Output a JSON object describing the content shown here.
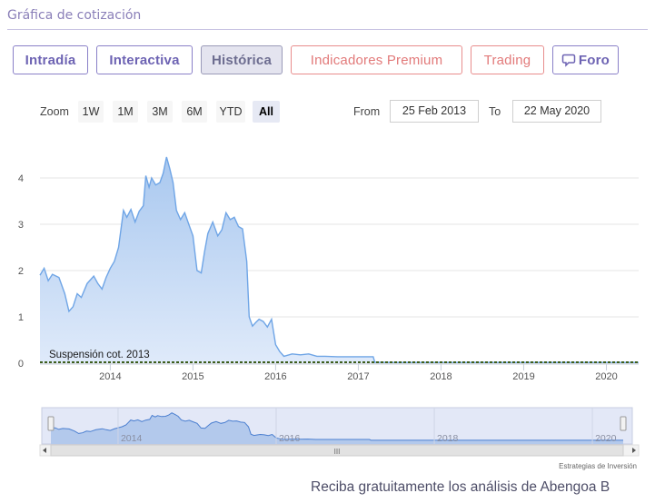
{
  "section": {
    "title": "Gráfica de cotización"
  },
  "tabs": [
    {
      "label": "Intradía",
      "style": "normal"
    },
    {
      "label": "Interactiva",
      "style": "normal"
    },
    {
      "label": "Histórica",
      "style": "active"
    },
    {
      "label": "Indicadores Premium",
      "style": "premium"
    },
    {
      "label": "Trading",
      "style": "premium"
    },
    {
      "label": "Foro",
      "style": "normal",
      "icon": "speech-bubble-icon"
    }
  ],
  "range": {
    "zoom_label": "Zoom",
    "buttons": [
      "1W",
      "1M",
      "3M",
      "6M",
      "YTD",
      "All"
    ],
    "selected": "All",
    "from_label": "From",
    "from_value": "25 Feb 2013",
    "to_label": "To",
    "to_value": "22 May 2020"
  },
  "chart_data": {
    "type": "area",
    "ylim": [
      0,
      5
    ],
    "y_ticks": [
      0,
      1,
      2,
      3,
      4
    ],
    "y_tick_labels": [
      "0",
      "1",
      "2",
      "3",
      "4"
    ],
    "x_range": [
      2013.15,
      2020.39
    ],
    "x_ticks": [
      2014,
      2015,
      2016,
      2017,
      2018,
      2019,
      2020
    ],
    "x_tick_labels": [
      "2014",
      "2015",
      "2016",
      "2017",
      "2018",
      "2019",
      "2020"
    ],
    "grid": true,
    "series": [
      {
        "values": [
          [
            2013.15,
            1.9
          ],
          [
            2013.2,
            2.05
          ],
          [
            2013.25,
            1.78
          ],
          [
            2013.3,
            1.92
          ],
          [
            2013.38,
            1.85
          ],
          [
            2013.45,
            1.5
          ],
          [
            2013.5,
            1.12
          ],
          [
            2013.55,
            1.22
          ],
          [
            2013.6,
            1.5
          ],
          [
            2013.65,
            1.42
          ],
          [
            2013.72,
            1.72
          ],
          [
            2013.8,
            1.88
          ],
          [
            2013.85,
            1.72
          ],
          [
            2013.9,
            1.6
          ],
          [
            2013.95,
            1.85
          ],
          [
            2014.0,
            2.05
          ],
          [
            2014.05,
            2.2
          ],
          [
            2014.1,
            2.5
          ],
          [
            2014.13,
            2.9
          ],
          [
            2014.16,
            3.3
          ],
          [
            2014.2,
            3.15
          ],
          [
            2014.25,
            3.32
          ],
          [
            2014.3,
            3.05
          ],
          [
            2014.35,
            3.28
          ],
          [
            2014.4,
            3.4
          ],
          [
            2014.43,
            4.05
          ],
          [
            2014.47,
            3.8
          ],
          [
            2014.5,
            4.0
          ],
          [
            2014.55,
            3.85
          ],
          [
            2014.6,
            3.9
          ],
          [
            2014.64,
            4.1
          ],
          [
            2014.68,
            4.45
          ],
          [
            2014.72,
            4.2
          ],
          [
            2014.76,
            3.9
          ],
          [
            2014.8,
            3.3
          ],
          [
            2014.85,
            3.1
          ],
          [
            2014.9,
            3.25
          ],
          [
            2014.95,
            3.0
          ],
          [
            2015.0,
            2.75
          ],
          [
            2015.05,
            2.0
          ],
          [
            2015.1,
            1.95
          ],
          [
            2015.14,
            2.4
          ],
          [
            2015.18,
            2.8
          ],
          [
            2015.24,
            3.05
          ],
          [
            2015.3,
            2.75
          ],
          [
            2015.35,
            2.88
          ],
          [
            2015.4,
            3.25
          ],
          [
            2015.45,
            3.1
          ],
          [
            2015.5,
            3.15
          ],
          [
            2015.55,
            2.95
          ],
          [
            2015.6,
            2.9
          ],
          [
            2015.65,
            2.2
          ],
          [
            2015.68,
            1.0
          ],
          [
            2015.72,
            0.8
          ],
          [
            2015.76,
            0.88
          ],
          [
            2015.8,
            0.95
          ],
          [
            2015.85,
            0.9
          ],
          [
            2015.9,
            0.78
          ],
          [
            2015.95,
            0.95
          ],
          [
            2016.0,
            0.4
          ],
          [
            2016.05,
            0.25
          ],
          [
            2016.1,
            0.15
          ],
          [
            2016.2,
            0.2
          ],
          [
            2016.3,
            0.18
          ],
          [
            2016.4,
            0.2
          ],
          [
            2016.5,
            0.15
          ],
          [
            2016.6,
            0.15
          ],
          [
            2016.75,
            0.14
          ],
          [
            2016.9,
            0.14
          ],
          [
            2017.05,
            0.14
          ],
          [
            2017.18,
            0.14
          ],
          [
            2017.2,
            0.02
          ],
          [
            2017.4,
            0.015
          ],
          [
            2017.7,
            0.015
          ],
          [
            2018.0,
            0.015
          ],
          [
            2018.5,
            0.015
          ],
          [
            2019.0,
            0.015
          ],
          [
            2019.5,
            0.015
          ],
          [
            2020.0,
            0.015
          ],
          [
            2020.39,
            0.015
          ]
        ],
        "color": "#6fa5e6",
        "fill_top": "#a9c8ef",
        "fill_bottom": "#dfeafa"
      }
    ],
    "dashed_line": {
      "color": "#3e5f1e"
    },
    "annotation": {
      "text": "Suspensión cot. 2013",
      "color": "#1a1a1a"
    },
    "navigator": {
      "x_tick_labels": [
        "2014",
        "2016",
        "2018",
        "2020"
      ],
      "x_ticks": [
        2014,
        2016,
        2018,
        2020
      ],
      "scrollbar_glyph": "III"
    },
    "credit": "Estrategias de Inversión"
  },
  "promo": {
    "text": "Reciba gratuitamente los análisis de Abengoa B"
  }
}
